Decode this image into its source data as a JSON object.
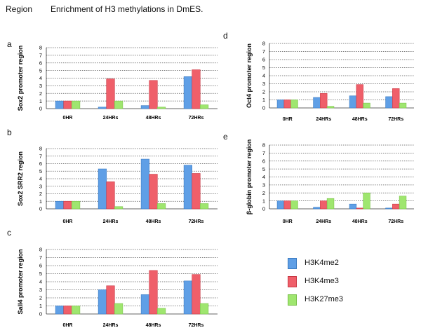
{
  "header": {
    "region_label": "Region",
    "title": "Enrichment of H3 methylations in DmES."
  },
  "colors": {
    "H3K4me2": "#5f9fe6",
    "H3K4me3": "#ef5f6a",
    "H3K27me3": "#9fe66f"
  },
  "legend": {
    "items": [
      {
        "name": "H3K4me2",
        "color": "#5f9fe6"
      },
      {
        "name": "H3K4me3",
        "color": "#ef5f6a"
      },
      {
        "name": "H3K27me3",
        "color": "#9fe66f"
      }
    ]
  },
  "chart_data": [
    {
      "panel": "a",
      "type": "bar",
      "title": "",
      "xlabel": "",
      "ylabel": "Sox2 promoter region",
      "ylim": [
        0,
        8
      ],
      "yticks": [
        0,
        1,
        2,
        3,
        4,
        5,
        6,
        7,
        8
      ],
      "categories": [
        "0HR",
        "24HRs",
        "48HRs",
        "72HRs"
      ],
      "series": [
        {
          "name": "H3K4me2",
          "values": [
            1,
            0.2,
            0.4,
            4.2
          ]
        },
        {
          "name": "H3K4me3",
          "values": [
            1,
            3.9,
            3.7,
            5.1
          ]
        },
        {
          "name": "H3K27me3",
          "values": [
            1,
            1.0,
            0.2,
            0.5
          ]
        }
      ]
    },
    {
      "panel": "b",
      "type": "bar",
      "title": "",
      "xlabel": "",
      "ylabel": "Sox2 SRR2 region",
      "ylim": [
        0,
        8
      ],
      "yticks": [
        0,
        1,
        2,
        3,
        4,
        5,
        6,
        7,
        8
      ],
      "categories": [
        "0HR",
        "24HRs",
        "48HRs",
        "72HRs"
      ],
      "series": [
        {
          "name": "H3K4me2",
          "values": [
            1,
            5.3,
            6.6,
            5.8
          ]
        },
        {
          "name": "H3K4me3",
          "values": [
            1,
            3.6,
            4.6,
            4.7
          ]
        },
        {
          "name": "H3K27me3",
          "values": [
            1,
            0.3,
            0.7,
            0.7
          ]
        }
      ]
    },
    {
      "panel": "c",
      "type": "bar",
      "title": "",
      "xlabel": "",
      "ylabel": "Sall4 promoter region",
      "ylim": [
        0,
        8
      ],
      "yticks": [
        0,
        1,
        2,
        3,
        4,
        5,
        6,
        7,
        8
      ],
      "categories": [
        "0HR",
        "24HRs",
        "48HRs",
        "72HRs"
      ],
      "series": [
        {
          "name": "H3K4me2",
          "values": [
            1,
            3.0,
            2.4,
            4.1
          ]
        },
        {
          "name": "H3K4me3",
          "values": [
            1,
            3.5,
            5.4,
            4.9
          ]
        },
        {
          "name": "H3K27me3",
          "values": [
            1,
            1.3,
            0.7,
            1.3
          ]
        }
      ]
    },
    {
      "panel": "d",
      "type": "bar",
      "title": "",
      "xlabel": "",
      "ylabel": "Oct4 promoter region",
      "ylim": [
        0,
        8
      ],
      "yticks": [
        0,
        1,
        2,
        3,
        4,
        5,
        6,
        7,
        8
      ],
      "categories": [
        "0HR",
        "24HRs",
        "48HRs",
        "72HRs"
      ],
      "series": [
        {
          "name": "H3K4me2",
          "values": [
            1,
            1.3,
            1.5,
            1.4
          ]
        },
        {
          "name": "H3K4me3",
          "values": [
            1,
            1.8,
            2.9,
            2.4
          ]
        },
        {
          "name": "H3K27me3",
          "values": [
            1,
            0.2,
            0.6,
            0.6
          ]
        }
      ]
    },
    {
      "panel": "e",
      "type": "bar",
      "title": "",
      "xlabel": "",
      "ylabel": "β-globin promoter region",
      "ylim": [
        0,
        8
      ],
      "yticks": [
        0,
        1,
        2,
        3,
        4,
        5,
        6,
        7,
        8
      ],
      "categories": [
        "0HR",
        "24HRs",
        "48HRs",
        "72HRs"
      ],
      "series": [
        {
          "name": "H3K4me2",
          "values": [
            1,
            0.2,
            0.6,
            0.1
          ]
        },
        {
          "name": "H3K4me3",
          "values": [
            1,
            1.0,
            0.1,
            0.6
          ]
        },
        {
          "name": "H3K27me3",
          "values": [
            1,
            1.3,
            2.0,
            1.6
          ]
        }
      ]
    }
  ]
}
